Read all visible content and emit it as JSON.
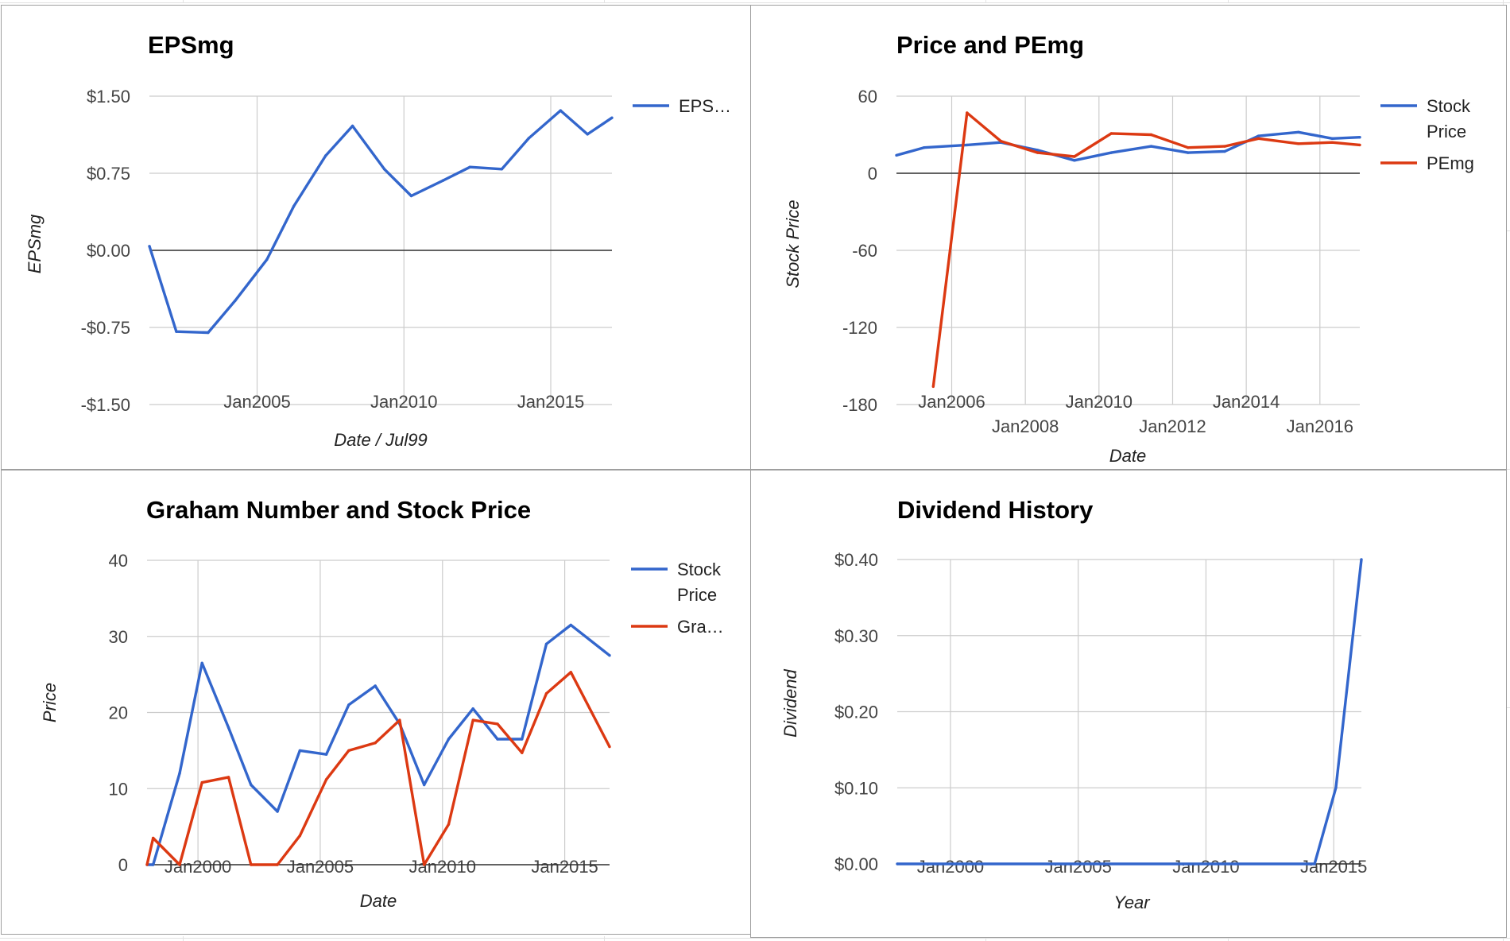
{
  "chart_data": [
    {
      "type": "line",
      "title": "EPSmg",
      "xlabel": "Date / Jul99",
      "ylabel": "EPSmg",
      "x_ticks": [
        "Jan2005",
        "Jan2010",
        "Jan2015"
      ],
      "y_ticks": [
        "$1.50",
        "$0.75",
        "$0.00",
        "-$0.75",
        "-$1.50"
      ],
      "ylim": [
        -1.5,
        1.5
      ],
      "xlim": [
        "2001-05",
        "2017-02"
      ],
      "grid": true,
      "legend_position": "right",
      "series": [
        {
          "name": "EPS…",
          "color": "#3366cc",
          "x": [
            "2001-05",
            "2002-04",
            "2003-05",
            "2004-04",
            "2005-05",
            "2006-04",
            "2007-05",
            "2008-04",
            "2009-05",
            "2010-04",
            "2011-05",
            "2012-04",
            "2013-05",
            "2014-04",
            "2015-05",
            "2016-04",
            "2017-02"
          ],
          "y": [
            0.04,
            -0.79,
            -0.8,
            -0.49,
            -0.09,
            0.43,
            0.92,
            1.21,
            0.79,
            0.53,
            0.68,
            0.81,
            0.79,
            1.09,
            1.36,
            1.13,
            1.29
          ]
        }
      ]
    },
    {
      "type": "line",
      "title": "Price and PEmg",
      "xlabel": "Date",
      "ylabel": "Stock Price",
      "x_ticks": [
        "Jan2006",
        "Jan2008",
        "Jan2010",
        "Jan2012",
        "Jan2014",
        "Jan2016"
      ],
      "y_ticks": [
        "60",
        "0",
        "-60",
        "-120",
        "-180"
      ],
      "ylim": [
        -180,
        60
      ],
      "xlim": [
        "2004-07",
        "2017-02"
      ],
      "grid": true,
      "legend_position": "right",
      "series": [
        {
          "name": "Stock Price",
          "color": "#3366cc",
          "x": [
            "2004-07",
            "2005-04",
            "2006-06",
            "2007-05",
            "2008-05",
            "2009-05",
            "2010-05",
            "2011-06",
            "2012-06",
            "2013-06",
            "2014-05",
            "2015-06",
            "2016-05",
            "2017-02"
          ],
          "y": [
            14,
            20,
            22,
            24,
            18,
            10,
            16,
            21,
            16,
            17,
            29,
            32,
            27,
            28
          ]
        },
        {
          "name": "PEmg",
          "color": "#dc3912",
          "x": [
            "2005-07",
            "2006-06",
            "2007-05",
            "2008-05",
            "2009-05",
            "2010-05",
            "2011-06",
            "2012-06",
            "2013-06",
            "2014-05",
            "2015-06",
            "2016-05",
            "2017-02"
          ],
          "y": [
            -166,
            47,
            25,
            16,
            13,
            31,
            30,
            20,
            21,
            27,
            23,
            24,
            22
          ]
        }
      ]
    },
    {
      "type": "line",
      "title": "Graham Number and Stock Price",
      "xlabel": "Date",
      "ylabel": "Price",
      "x_ticks": [
        "Jan2000",
        "Jan2005",
        "Jan2010",
        "Jan2015"
      ],
      "y_ticks": [
        "40",
        "30",
        "20",
        "10",
        "0"
      ],
      "ylim": [
        0,
        40
      ],
      "xlim": [
        "1997-12",
        "2016-11"
      ],
      "grid": true,
      "legend_position": "right",
      "series": [
        {
          "name": "Stock Price",
          "color": "#3366cc",
          "x": [
            "1997-12",
            "1998-03",
            "1999-04",
            "2000-03",
            "2001-04",
            "2002-03",
            "2003-04",
            "2004-03",
            "2005-04",
            "2006-03",
            "2007-04",
            "2008-04",
            "2009-04",
            "2010-04",
            "2011-04",
            "2012-04",
            "2013-04",
            "2014-04",
            "2015-04",
            "2016-11"
          ],
          "y": [
            0,
            0,
            12,
            26.5,
            18,
            10.5,
            7,
            15,
            14.5,
            21,
            23.5,
            18.5,
            10.5,
            16.5,
            20.5,
            16.5,
            16.5,
            29,
            31.5,
            27.5
          ]
        },
        {
          "name": "Gra…",
          "color": "#dc3912",
          "x": [
            "1997-12",
            "1998-03",
            "1999-04",
            "2000-03",
            "2001-04",
            "2002-03",
            "2003-04",
            "2004-03",
            "2005-04",
            "2006-03",
            "2007-04",
            "2008-04",
            "2009-04",
            "2010-04",
            "2011-04",
            "2012-04",
            "2013-04",
            "2014-04",
            "2015-04",
            "2016-11"
          ],
          "y": [
            0,
            3.5,
            0,
            10.8,
            11.5,
            0,
            0,
            3.8,
            11.2,
            15,
            16,
            19,
            0,
            5.3,
            19,
            18.5,
            14.7,
            22.5,
            25.3,
            15.5
          ]
        }
      ]
    },
    {
      "type": "line",
      "title": "Dividend History",
      "xlabel": "Year",
      "ylabel": "Dividend",
      "x_ticks": [
        "Jan2000",
        "Jan2005",
        "Jan2010",
        "Jan2015"
      ],
      "y_ticks": [
        "$0.40",
        "$0.30",
        "$0.20",
        "$0.10",
        "$0.00"
      ],
      "ylim": [
        0,
        0.4
      ],
      "xlim": [
        "1997-12",
        "2016-02"
      ],
      "grid": true,
      "legend_position": "none",
      "series": [
        {
          "color": "#3366cc",
          "x": [
            "1997-12",
            "2014-04",
            "2015-02",
            "2016-02"
          ],
          "y": [
            0,
            0,
            0.1,
            0.4
          ]
        }
      ]
    }
  ]
}
